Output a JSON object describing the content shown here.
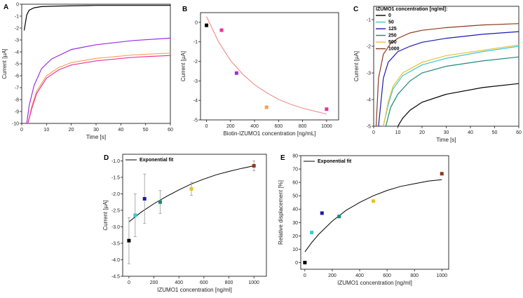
{
  "chart_data": [
    {
      "panel": "A",
      "type": "line",
      "xlabel": "Time [s]",
      "ylabel": "Current [µA]",
      "xlim": [
        0,
        60
      ],
      "ylim": [
        -10,
        0
      ],
      "xticks": [
        "0",
        "10",
        "20",
        "30",
        "40",
        "50",
        "60"
      ],
      "yticks": [
        "0",
        "-1",
        "-2",
        "-3",
        "-4",
        "-5",
        "-6",
        "-7",
        "-8",
        "-9",
        "-10"
      ],
      "series": [
        {
          "name": "black",
          "color": "#000000",
          "x": [
            1,
            2,
            3,
            5,
            8,
            15,
            30,
            60
          ],
          "y": [
            -2.2,
            -0.9,
            -0.5,
            -0.3,
            -0.2,
            -0.15,
            -0.1,
            -0.1
          ]
        },
        {
          "name": "purple",
          "color": "#9b30e0",
          "x": [
            2,
            3,
            5,
            8,
            12,
            20,
            30,
            45,
            60
          ],
          "y": [
            -10,
            -8.5,
            -6.8,
            -5.4,
            -4.6,
            -3.8,
            -3.4,
            -3.05,
            -2.85
          ]
        },
        {
          "name": "orange",
          "color": "#f5a15a",
          "x": [
            2.5,
            4,
            6,
            10,
            15,
            20,
            30,
            45,
            60
          ],
          "y": [
            -10,
            -8.6,
            -7.3,
            -6.0,
            -5.3,
            -4.9,
            -4.55,
            -4.25,
            -4.1
          ]
        },
        {
          "name": "pink",
          "color": "#e8349a",
          "x": [
            2.5,
            4,
            6,
            10,
            15,
            20,
            30,
            45,
            60
          ],
          "y": [
            -10,
            -8.8,
            -7.5,
            -6.2,
            -5.5,
            -5.1,
            -4.75,
            -4.45,
            -4.3
          ]
        }
      ]
    },
    {
      "panel": "B",
      "type": "scatter",
      "xlabel": "Biotin-IZUMO1 concentration [ng/mL]",
      "ylabel": "Current [µA]",
      "xlim": [
        -50,
        1100
      ],
      "ylim": [
        -5,
        0.5
      ],
      "xticks": [
        "0",
        "200",
        "400",
        "600",
        "800",
        "1000"
      ],
      "yticks": [
        "0",
        "-1",
        "-2",
        "-3",
        "-4",
        "-5"
      ],
      "points": [
        {
          "x": 0,
          "y": -0.15,
          "color": "#000000"
        },
        {
          "x": 125,
          "y": -0.4,
          "color": "#e8349a"
        },
        {
          "x": 250,
          "y": -2.6,
          "color": "#9b30e0"
        },
        {
          "x": 500,
          "y": -4.35,
          "color": "#f5a15a"
        },
        {
          "x": 1000,
          "y": -4.45,
          "color": "#e8349a"
        }
      ],
      "fit": {
        "color": "#f08080",
        "x": [
          0,
          100,
          200,
          300,
          400,
          500,
          600,
          700,
          800,
          900,
          1000
        ],
        "y": [
          0.3,
          -1.0,
          -1.95,
          -2.65,
          -3.2,
          -3.6,
          -3.95,
          -4.2,
          -4.4,
          -4.55,
          -4.7
        ]
      }
    },
    {
      "panel": "C",
      "type": "line",
      "xlabel": "Time [s]",
      "ylabel": "Current [µA]",
      "xlim": [
        0,
        60
      ],
      "ylim": [
        -5,
        -0.5
      ],
      "xticks": [
        "0",
        "10",
        "20",
        "30",
        "40",
        "50",
        "60"
      ],
      "yticks": [
        "-1",
        "-2",
        "-3",
        "-4",
        "-5"
      ],
      "legend_title": "IZUMO1 concentration [ng/ml]:",
      "series": [
        {
          "name": "0",
          "color": "#000000",
          "x": [
            10,
            12,
            15,
            20,
            30,
            45,
            60
          ],
          "y": [
            -5,
            -4.7,
            -4.4,
            -4.1,
            -3.8,
            -3.55,
            -3.4
          ]
        },
        {
          "name": "50",
          "color": "#3cc8d0",
          "x": [
            4,
            6,
            8,
            12,
            20,
            30,
            45,
            60
          ],
          "y": [
            -5,
            -4.2,
            -3.6,
            -3.1,
            -2.7,
            -2.45,
            -2.2,
            -2.0
          ]
        },
        {
          "name": "125",
          "color": "#1a1ab0",
          "x": [
            2,
            4,
            6,
            10,
            15,
            20,
            30,
            45,
            60
          ],
          "y": [
            -5,
            -3.2,
            -2.6,
            -2.2,
            -2.0,
            -1.85,
            -1.7,
            -1.55,
            -1.45
          ]
        },
        {
          "name": "250",
          "color": "#1a8a7a",
          "x": [
            5,
            7,
            10,
            15,
            20,
            30,
            45,
            60
          ],
          "y": [
            -5,
            -4.3,
            -3.8,
            -3.3,
            -3.0,
            -2.75,
            -2.55,
            -2.4
          ]
        },
        {
          "name": "500",
          "color": "#e8c030",
          "x": [
            4,
            6,
            8,
            12,
            20,
            30,
            45,
            60
          ],
          "y": [
            -5,
            -4.1,
            -3.5,
            -3.0,
            -2.6,
            -2.35,
            -2.15,
            -1.95
          ]
        },
        {
          "name": "1000",
          "color": "#8b3a1e",
          "x": [
            1,
            2,
            4,
            7,
            10,
            15,
            20,
            30,
            45,
            60
          ],
          "y": [
            -5,
            -3.2,
            -2.3,
            -1.9,
            -1.7,
            -1.5,
            -1.4,
            -1.3,
            -1.2,
            -1.15
          ]
        }
      ]
    },
    {
      "panel": "D",
      "type": "scatter",
      "xlabel": "IZUMO1 concentration [ng/ml]",
      "ylabel": "Current [µA]",
      "xlim": [
        -50,
        1100
      ],
      "ylim": [
        -4.5,
        -0.8
      ],
      "xticks": [
        "0",
        "200",
        "400",
        "600",
        "800",
        "1000"
      ],
      "yticks": [
        "-1.0",
        "-1.5",
        "-2.0",
        "-2.5",
        "-3.0",
        "-3.5",
        "-4.0",
        "-4.5"
      ],
      "legend": "Exponential fit",
      "points": [
        {
          "x": 0,
          "y": -3.42,
          "err": 0.7,
          "color": "#000000"
        },
        {
          "x": 50,
          "y": -2.65,
          "err": 0.65,
          "color": "#3cc8d0"
        },
        {
          "x": 125,
          "y": -2.15,
          "err": 0.75,
          "color": "#1a1ab0"
        },
        {
          "x": 250,
          "y": -2.25,
          "err": 0.35,
          "color": "#1a8a7a"
        },
        {
          "x": 500,
          "y": -1.85,
          "err": 0.2,
          "color": "#e8c030"
        },
        {
          "x": 1000,
          "y": -1.15,
          "err": 0.15,
          "color": "#8b3a1e"
        }
      ],
      "fit": {
        "color": "#000000",
        "x": [
          0,
          100,
          200,
          300,
          400,
          500,
          600,
          700,
          800,
          900,
          1000
        ],
        "y": [
          -2.85,
          -2.55,
          -2.3,
          -2.08,
          -1.88,
          -1.7,
          -1.55,
          -1.42,
          -1.32,
          -1.23,
          -1.15
        ]
      }
    },
    {
      "panel": "E",
      "type": "scatter",
      "xlabel": "IZUMO1 concentration [ng/ml]",
      "ylabel": "Relative displacement [%]",
      "xlim": [
        -30,
        1050
      ],
      "ylim": [
        -5,
        80
      ],
      "xticks": [
        "0",
        "200",
        "400",
        "600",
        "800",
        "1000"
      ],
      "yticks": [
        "0",
        "10",
        "20",
        "30",
        "40",
        "50",
        "60",
        "70",
        "80"
      ],
      "legend": "Exponential fit",
      "points": [
        {
          "x": 0,
          "y": 0,
          "color": "#000000"
        },
        {
          "x": 50,
          "y": 22.5,
          "color": "#3cc8d0"
        },
        {
          "x": 125,
          "y": 37,
          "color": "#1a1ab0"
        },
        {
          "x": 250,
          "y": 34.5,
          "color": "#1a8a7a"
        },
        {
          "x": 500,
          "y": 46,
          "color": "#e8c030"
        },
        {
          "x": 1000,
          "y": 66.5,
          "color": "#8b3a1e"
        }
      ],
      "fit": {
        "color": "#000000",
        "x": [
          0,
          50,
          100,
          200,
          300,
          400,
          500,
          600,
          700,
          800,
          900,
          1000
        ],
        "y": [
          8,
          15,
          21,
          31,
          39,
          45,
          50,
          54,
          57,
          59,
          61,
          62
        ]
      }
    }
  ]
}
